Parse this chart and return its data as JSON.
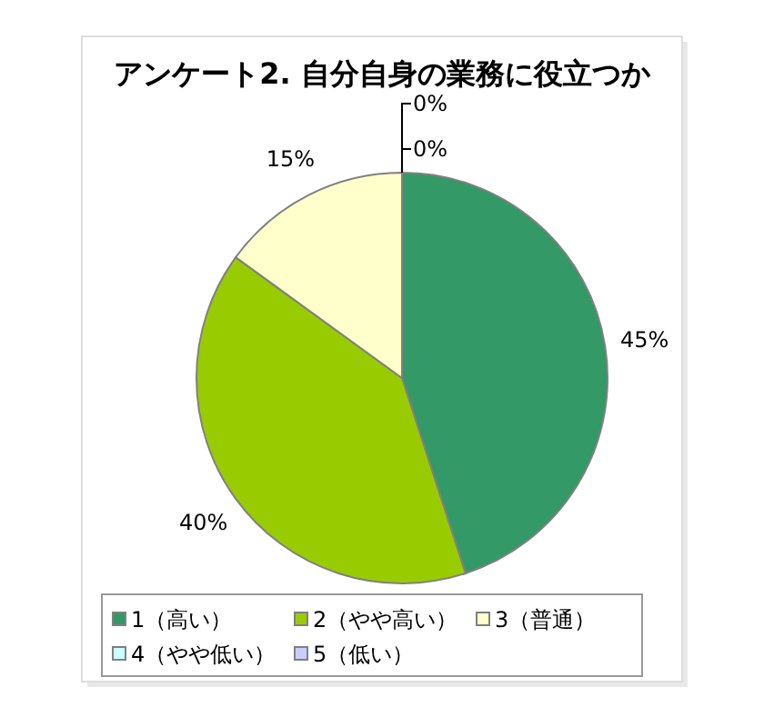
{
  "chart_data": {
    "type": "pie",
    "title": "アンケート2. 自分自身の業務に役立つか",
    "categories": [
      "1（高い）",
      "2（やや高い）",
      "3（普通）",
      "4（やや低い）",
      "5（低い）"
    ],
    "values": [
      45,
      40,
      15,
      0,
      0
    ],
    "colors": [
      "#339966",
      "#99cc00",
      "#ffffcc",
      "#ccffff",
      "#ccccff"
    ],
    "value_labels": [
      "45%",
      "40%",
      "15%",
      "0%",
      "0%"
    ],
    "legend": "bottom"
  }
}
